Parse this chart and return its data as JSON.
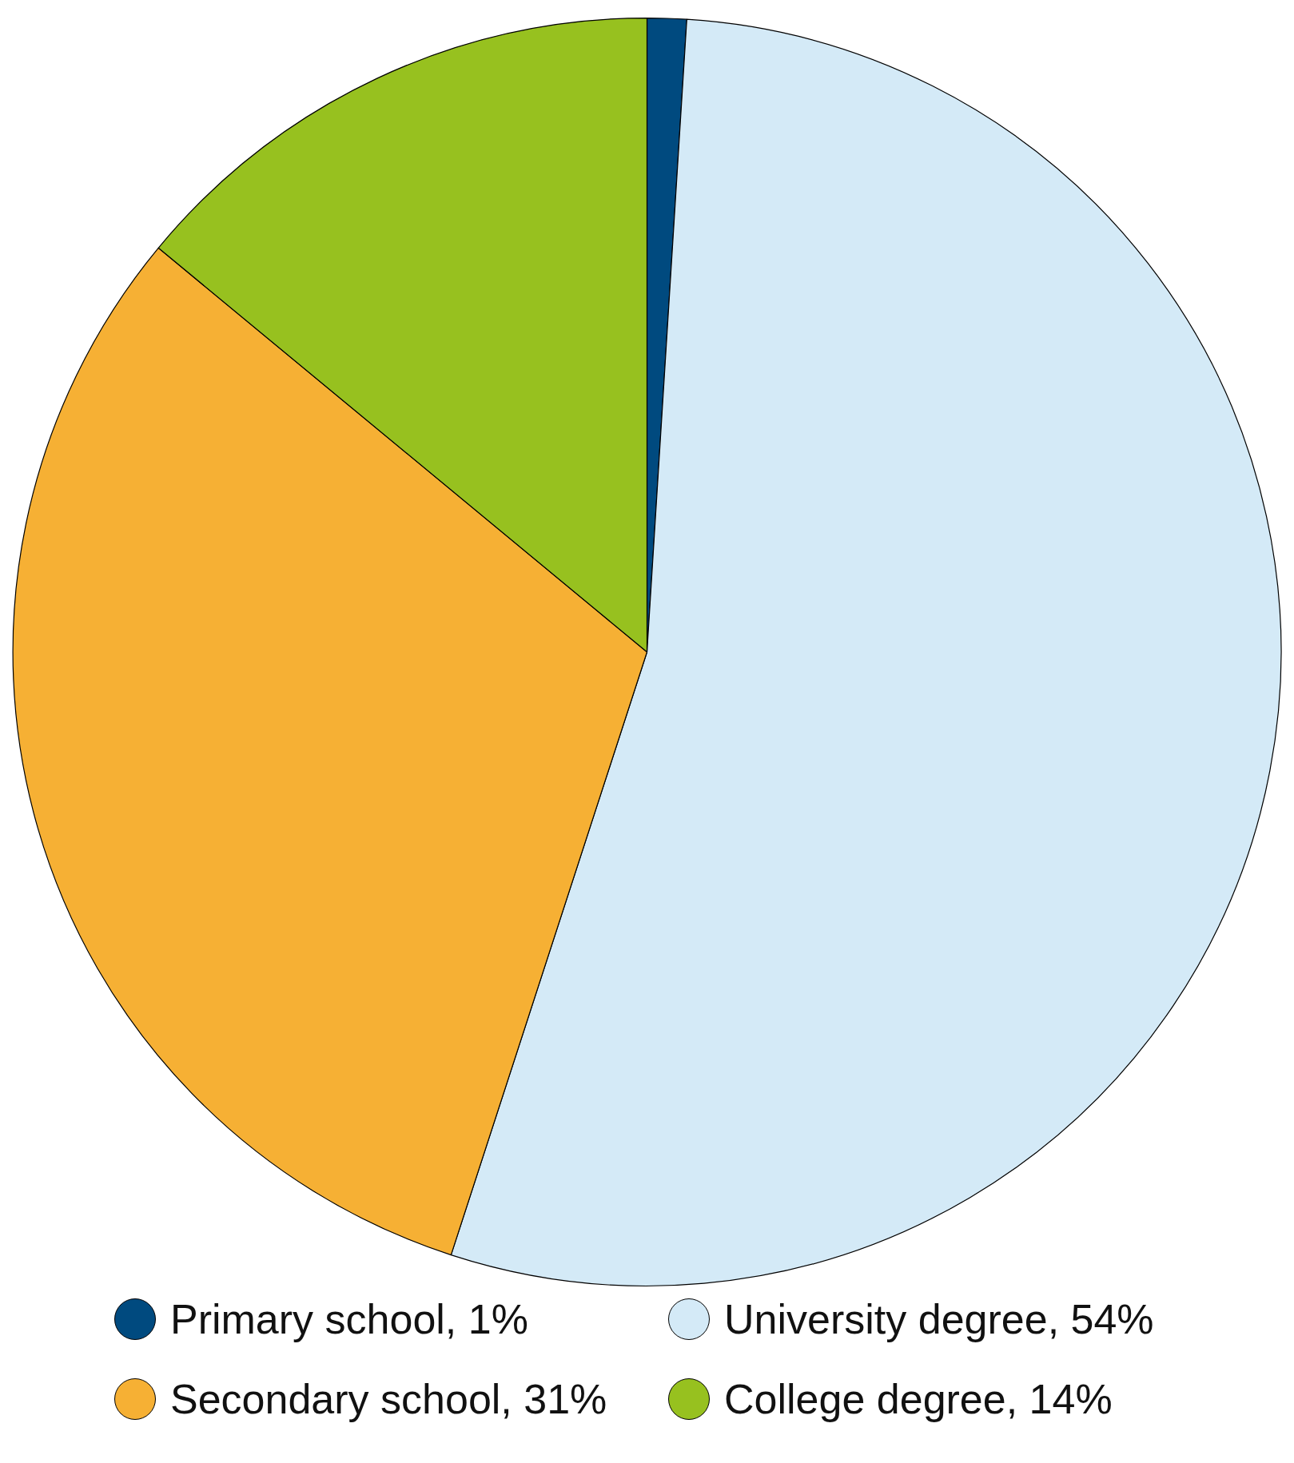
{
  "chart_data": {
    "type": "pie",
    "categories": [
      "Primary school, 1%",
      "University degree, 54%",
      "Secondary school, 31%",
      "College degree, 14%"
    ],
    "values": [
      1,
      54,
      31,
      14
    ],
    "colors": [
      "#004a7f",
      "#d4eaf7",
      "#f6b034",
      "#97c11f"
    ],
    "legend": "bottom"
  }
}
